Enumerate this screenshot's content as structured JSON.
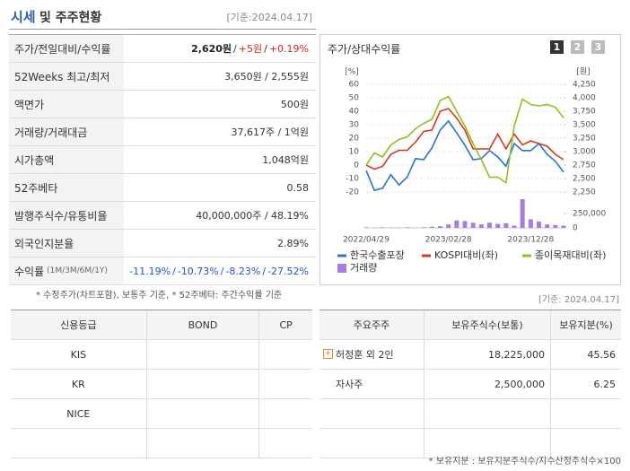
{
  "header": {
    "title": "시세",
    "title2": "및 주주현황",
    "date": "[기준:2024.04.17]"
  },
  "quote_table": [
    {
      "label": "주가/전일대비/수익률",
      "value": [
        "2,620원",
        "/",
        "+5원",
        "/",
        "+0.19%"
      ]
    },
    {
      "label": "52Weeks 최고/최저",
      "value": [
        "3,650원 / 2,555원"
      ]
    },
    {
      "label": "액면가",
      "value": [
        "500원"
      ]
    },
    {
      "label": "거래량/거래대금",
      "value": [
        "37,617주 / 1억원"
      ]
    },
    {
      "label": "시가총액",
      "value": [
        "1,048억원"
      ]
    },
    {
      "label": "52주베타",
      "value": [
        "0.58"
      ]
    },
    {
      "label": "발행주식수/유통비율",
      "value": [
        "40,000,000주 / 48.19%"
      ]
    },
    {
      "label": "외국인지분율",
      "value": [
        "2.89%"
      ]
    },
    {
      "label": "수익률",
      "note": "(1M/3M/6M/1Y)",
      "value": [
        "-11.19%",
        "/",
        "-10.73%",
        "/",
        "-8.23%",
        "/",
        "-27.52%"
      ]
    }
  ],
  "footnote": "* 수정주가(차트포함), 보통주 기준, * 52주베타: 주간수익률 기준",
  "chart_panel": {
    "title": "주가/상대수익률",
    "buttons": [
      "1",
      "2",
      "3"
    ]
  },
  "chart_data": {
    "type": "line",
    "ylabel": "[%]",
    "y2label": "[원]",
    "categories": [
      "2022/04/29",
      null,
      null,
      null,
      null,
      null,
      null,
      null,
      null,
      null,
      "2023/02/28",
      null,
      null,
      null,
      null,
      null,
      null,
      null,
      null,
      null,
      "2023/12/28",
      null,
      null,
      null,
      null
    ],
    "ylim": [
      -20,
      60
    ],
    "yticks": [
      60,
      50,
      40,
      30,
      20,
      10,
      0,
      -10,
      -20
    ],
    "y2lim": [
      2250,
      4250
    ],
    "y2ticks": [
      {
        "value": 4250,
        "label": "4,250"
      },
      {
        "value": 4000,
        "label": "4,000"
      },
      {
        "value": 3750,
        "label": "3,750"
      },
      {
        "value": 3500,
        "label": "3,500"
      },
      {
        "value": 3250,
        "label": "3,250"
      },
      {
        "value": 3000,
        "label": "3,000"
      },
      {
        "value": 2750,
        "label": "2,750"
      },
      {
        "value": 2500,
        "label": "2,500"
      },
      {
        "value": 2250,
        "label": "2,250"
      }
    ],
    "y3lim": [
      0,
      250000
    ],
    "y3ticks": [
      {
        "value": 250000,
        "label": "250,000"
      },
      0
    ],
    "grid": true,
    "series": [
      {
        "name": "한국수출포장",
        "color": "#2a6fdb",
        "axis": "y2",
        "values": [
          2650,
          2280,
          2320,
          2570,
          2380,
          2530,
          2870,
          2850,
          3070,
          3400,
          3570,
          3350,
          3120,
          2850,
          2870,
          3020,
          2900,
          2730,
          3150,
          3020,
          3020,
          3150,
          2950,
          2820,
          2620
        ]
      },
      {
        "name": "KOSPI대비(좌)",
        "color": "#d9381e",
        "values": [
          0,
          -3,
          -1,
          8,
          11,
          11,
          17,
          25,
          26,
          40,
          42,
          35,
          26,
          12,
          12,
          12,
          23,
          12,
          23,
          15,
          18,
          16,
          14,
          8,
          4
        ]
      },
      {
        "name": "종이목재대비(좌)",
        "color": "#8dc21f",
        "values": [
          0,
          9,
          6,
          15,
          19,
          21,
          27,
          31,
          34,
          48,
          51,
          40,
          29,
          16,
          4,
          -9,
          -9,
          -13,
          29,
          49,
          45,
          44,
          45,
          43,
          35
        ]
      },
      {
        "name": "거래량",
        "color": "#a57ee0",
        "type": "bar",
        "axis": "y3",
        "values": [
          10000,
          5000,
          10000,
          5000,
          5000,
          10000,
          5000,
          10000,
          20000,
          30000,
          60000,
          130000,
          120000,
          90000,
          60000,
          90000,
          70000,
          80000,
          40000,
          500000,
          150000,
          110000,
          60000,
          50000,
          40000
        ]
      }
    ]
  },
  "date2": "[기준: 2024.04.17]",
  "credit_table": {
    "header": [
      "신용등급",
      "BOND",
      "CP"
    ],
    "agencies": [
      "KIS",
      "KR",
      "NICE"
    ]
  },
  "holder_table": {
    "header": [
      "주요주주",
      "보유주식수(보통)",
      "보유지분(%)"
    ],
    "rows": [
      [
        "허정훈 외 2인",
        "18,225,000",
        "45.56"
      ],
      [
        "자사주",
        "2,500,000",
        "6.25"
      ]
    ]
  },
  "footnote2": "* 보유지분 : 보유지분주식수/지수산정주식수×100"
}
